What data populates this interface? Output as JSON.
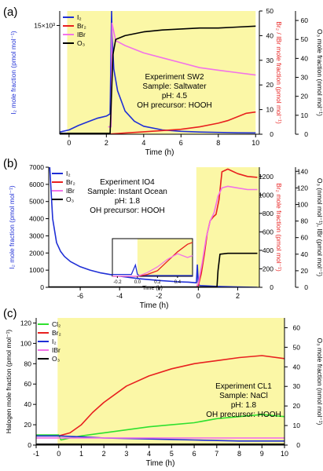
{
  "chart_data": [
    {
      "panel_label": "(a)",
      "type": "line",
      "xlabel": "Time (h)",
      "xlim": [
        -0.5,
        10.2
      ],
      "x_ticks": [
        0,
        2,
        4,
        6,
        8,
        10
      ],
      "ylabel_left": "I₂ mole fraction (pmol mol⁻¹)",
      "ylim_left": [
        0,
        17000
      ],
      "y_ticks_left": [
        {
          "value": 15000,
          "label": "15×10³"
        }
      ],
      "ylabel_right": "Br₂ / IBr mole fraction (pmol mol⁻¹)",
      "ylim_right": [
        0,
        50
      ],
      "y_ticks_right": [
        0,
        10,
        20,
        30,
        40,
        50
      ],
      "ylabel_right2": "O₃ mole fraction (nmol mol⁻¹)",
      "ylim_right2": [
        0,
        65
      ],
      "y_ticks_right2": [
        0,
        10,
        20,
        30,
        40,
        50,
        60
      ],
      "shaded_x": [
        -0.1,
        10.0
      ],
      "legend": [
        "I₂",
        "Br₂",
        "IBr",
        "O₃"
      ],
      "annotation": [
        "Experiment SW2",
        "Sample: Saltwater",
        "pH: 4.5",
        "OH precursor: HOOH"
      ],
      "series": [
        {
          "name": "I₂",
          "color": "#1f2fd6",
          "axis": "left",
          "x": [
            -0.5,
            0,
            0.5,
            1,
            1.5,
            2,
            2.2,
            2.28,
            2.3,
            2.4,
            2.6,
            3,
            3.5,
            4,
            5,
            6,
            7,
            8,
            9,
            10
          ],
          "y": [
            300,
            600,
            1200,
            1700,
            2200,
            2500,
            2800,
            17000,
            14000,
            9000,
            6000,
            3200,
            1800,
            1100,
            600,
            400,
            300,
            250,
            200,
            180
          ]
        },
        {
          "name": "Br₂",
          "color": "#e8201f",
          "axis": "right",
          "x": [
            -0.5,
            0,
            2,
            3,
            4,
            5,
            6,
            7,
            8,
            8.5,
            9,
            9.5,
            10
          ],
          "y": [
            0,
            0,
            0,
            0.5,
            1,
            1.5,
            2,
            3,
            4.5,
            5.5,
            7,
            8.5,
            9
          ]
        },
        {
          "name": "IBr",
          "color": "#f272e8",
          "axis": "right",
          "x": [
            2.1,
            2.25,
            2.3,
            2.5,
            3,
            4,
            5,
            6,
            7,
            8,
            9,
            10
          ],
          "y": [
            3,
            3,
            45,
            38,
            36,
            33,
            31,
            29,
            27,
            26,
            25,
            24
          ]
        },
        {
          "name": "O₃",
          "color": "#000000",
          "axis": "right2",
          "x": [
            -0.5,
            0,
            2,
            2.2,
            2.35,
            2.5,
            3,
            4,
            5,
            6,
            7,
            8,
            9,
            10
          ],
          "y": [
            0.5,
            0.5,
            0.5,
            0.5,
            42,
            50,
            52,
            54,
            55,
            55.5,
            56,
            56,
            56.5,
            57
          ]
        }
      ]
    },
    {
      "panel_label": "(b)",
      "type": "line",
      "xlabel": "Time (h)",
      "xlim": [
        -7.6,
        3.1
      ],
      "x_ticks": [
        -6,
        -4,
        -2,
        0,
        2
      ],
      "ylabel_left": "I₂ mole fraction (pmol mol⁻¹)",
      "ylim_left": [
        0,
        7000
      ],
      "y_ticks_left": [
        0,
        1000,
        2000,
        3000,
        4000,
        5000,
        6000,
        7000
      ],
      "ylabel_right": "Br₂ mole fraction (pmol mol⁻¹)",
      "ylim_right": [
        0,
        1300
      ],
      "y_ticks_right": [
        0,
        200,
        400,
        600,
        800,
        1000,
        1200
      ],
      "ylabel_right2": "O₃ (nmol mol⁻¹), IBr (pmol mol⁻¹)",
      "ylim_right2": [
        0,
        145
      ],
      "y_ticks_right2": [
        0,
        20,
        40,
        60,
        80,
        100,
        120,
        140
      ],
      "shaded_x": [
        -0.1,
        3.1
      ],
      "legend": [
        "I₂",
        "Br₂",
        "IBr",
        "O₃"
      ],
      "annotation": [
        "Experiment IO4",
        "Sample: Instant Ocean",
        "pH: 1.8",
        "OH precursor: HOOH"
      ],
      "series": [
        {
          "name": "I₂",
          "color": "#1f2fd6",
          "axis": "left",
          "x": [
            -7.55,
            -7.4,
            -7.2,
            -7,
            -6.8,
            -6.5,
            -6,
            -5.5,
            -5,
            -4,
            -3,
            -2,
            -1,
            -0.5,
            -0.25,
            -0.1,
            -0.05,
            0,
            0.1,
            1,
            2,
            3
          ],
          "y": [
            7000,
            4000,
            2600,
            2100,
            1800,
            1500,
            1200,
            1000,
            850,
            650,
            500,
            400,
            320,
            300,
            280,
            260,
            1300,
            150,
            100,
            50,
            20,
            0
          ]
        },
        {
          "name": "Br₂",
          "color": "#e8201f",
          "axis": "right",
          "x": [
            -7.6,
            -0.1,
            0,
            0.15,
            0.3,
            0.45,
            0.6,
            0.75,
            0.9,
            1.05,
            1.2,
            1.5,
            1.8,
            2,
            2.5,
            3
          ],
          "y": [
            0,
            0,
            20,
            150,
            350,
            580,
            720,
            760,
            790,
            950,
            1250,
            1280,
            1250,
            1230,
            1200,
            1190
          ]
        },
        {
          "name": "IBr",
          "color": "#f272e8",
          "axis": "right2",
          "x": [
            -7.6,
            -0.1,
            0,
            0.2,
            0.4,
            0.6,
            0.8,
            1,
            1.2,
            1.5,
            2,
            2.5,
            3
          ],
          "y": [
            0,
            0,
            5,
            30,
            60,
            80,
            90,
            110,
            120,
            122,
            120,
            118,
            118
          ]
        },
        {
          "name": "O₃",
          "color": "#000000",
          "axis": "right2",
          "x": [
            -7.6,
            0.95,
            1,
            1.1,
            1.5,
            2,
            3
          ],
          "y": [
            0.5,
            0.5,
            20,
            40,
            41,
            41,
            41
          ]
        }
      ],
      "inset": {
        "xlabel": "Time (h)",
        "xlim": [
          -0.25,
          0.55
        ],
        "x_ticks": [
          {
            "value": -0.2,
            "label": "-0.2"
          },
          {
            "value": 0,
            "label": "0.0"
          },
          {
            "value": 0.2,
            "label": "0.2"
          },
          {
            "value": 0.4,
            "label": "0.4"
          }
        ],
        "shaded_x": [
          0,
          0.55
        ],
        "series": [
          {
            "name": "I₂",
            "color": "#1f2fd6",
            "x": [
              -0.25,
              -0.06,
              -0.02,
              0,
              0.02,
              0.06,
              0.55
            ],
            "y": [
              0.05,
              0.05,
              0.3,
              0.05,
              0.02,
              0.02,
              0.02
            ]
          },
          {
            "name": "Br₂",
            "color": "#e8201f",
            "x": [
              -0.25,
              0,
              0.1,
              0.2,
              0.3,
              0.4,
              0.5,
              0.55
            ],
            "y": [
              0,
              0,
              0.05,
              0.15,
              0.4,
              0.65,
              0.85,
              0.9
            ]
          },
          {
            "name": "IBr",
            "color": "#f272e8",
            "x": [
              -0.25,
              0,
              0.1,
              0.2,
              0.3,
              0.4,
              0.5,
              0.55
            ],
            "y": [
              0,
              0,
              0.1,
              0.25,
              0.45,
              0.6,
              0.5,
              0.55
            ]
          }
        ]
      }
    },
    {
      "panel_label": "(c)",
      "type": "line",
      "xlabel": "Time (h)",
      "xlim": [
        -1,
        10
      ],
      "x_ticks": [
        -1,
        0,
        1,
        2,
        3,
        4,
        5,
        6,
        7,
        8,
        9,
        10
      ],
      "ylabel_left": "Halogen mole fraction (pmol mol⁻¹)",
      "ylim_left": [
        0,
        125
      ],
      "y_ticks_left": [
        0,
        20,
        40,
        60,
        80,
        100,
        120
      ],
      "ylabel_right": "O₃ mole fraction (nmol mol⁻¹)",
      "ylim_right": [
        0,
        65
      ],
      "y_ticks_right": [
        0,
        10,
        20,
        30,
        40,
        50,
        60
      ],
      "shaded_x": [
        -0.05,
        10
      ],
      "legend": [
        "Cl₂",
        "Br₂",
        "I₂",
        "IBr",
        "O₃"
      ],
      "annotation": [
        "Experiment CL1",
        "Sample: NaCl",
        "pH: 1.8",
        "OH precursor: HOOH"
      ],
      "series": [
        {
          "name": "Cl₂",
          "color": "#2fe02f",
          "axis": "left",
          "x": [
            -1,
            0,
            0.1,
            0.5,
            1,
            2,
            3,
            4,
            5,
            6,
            7,
            8,
            9,
            10
          ],
          "y": [
            10,
            10,
            5,
            7,
            9,
            12,
            15,
            18,
            20,
            22,
            26,
            28,
            30,
            28
          ]
        },
        {
          "name": "Br₂",
          "color": "#e8201f",
          "axis": "left",
          "x": [
            -1,
            0,
            0.5,
            1,
            1.5,
            2,
            3,
            4,
            5,
            6,
            7,
            8,
            9,
            10
          ],
          "y": [
            9,
            9,
            12,
            20,
            32,
            42,
            58,
            68,
            75,
            80,
            83,
            86,
            88,
            85
          ]
        },
        {
          "name": "I₂",
          "color": "#1f2fd6",
          "axis": "left",
          "x": [
            -1,
            0,
            1,
            2,
            4,
            6,
            8,
            10
          ],
          "y": [
            9,
            9,
            8,
            7,
            6,
            5,
            4,
            4
          ]
        },
        {
          "name": "IBr",
          "color": "#f272e8",
          "axis": "left",
          "x": [
            -1,
            0,
            1,
            2,
            4,
            6,
            8,
            10
          ],
          "y": [
            7,
            7,
            7,
            7,
            7,
            7,
            7,
            7
          ]
        },
        {
          "name": "O₃",
          "color": "#000000",
          "axis": "right",
          "x": [
            -1,
            0,
            2,
            4,
            6,
            8,
            10
          ],
          "y": [
            0.5,
            0.5,
            0.5,
            0.5,
            0.5,
            0.5,
            0.5
          ]
        }
      ]
    }
  ]
}
